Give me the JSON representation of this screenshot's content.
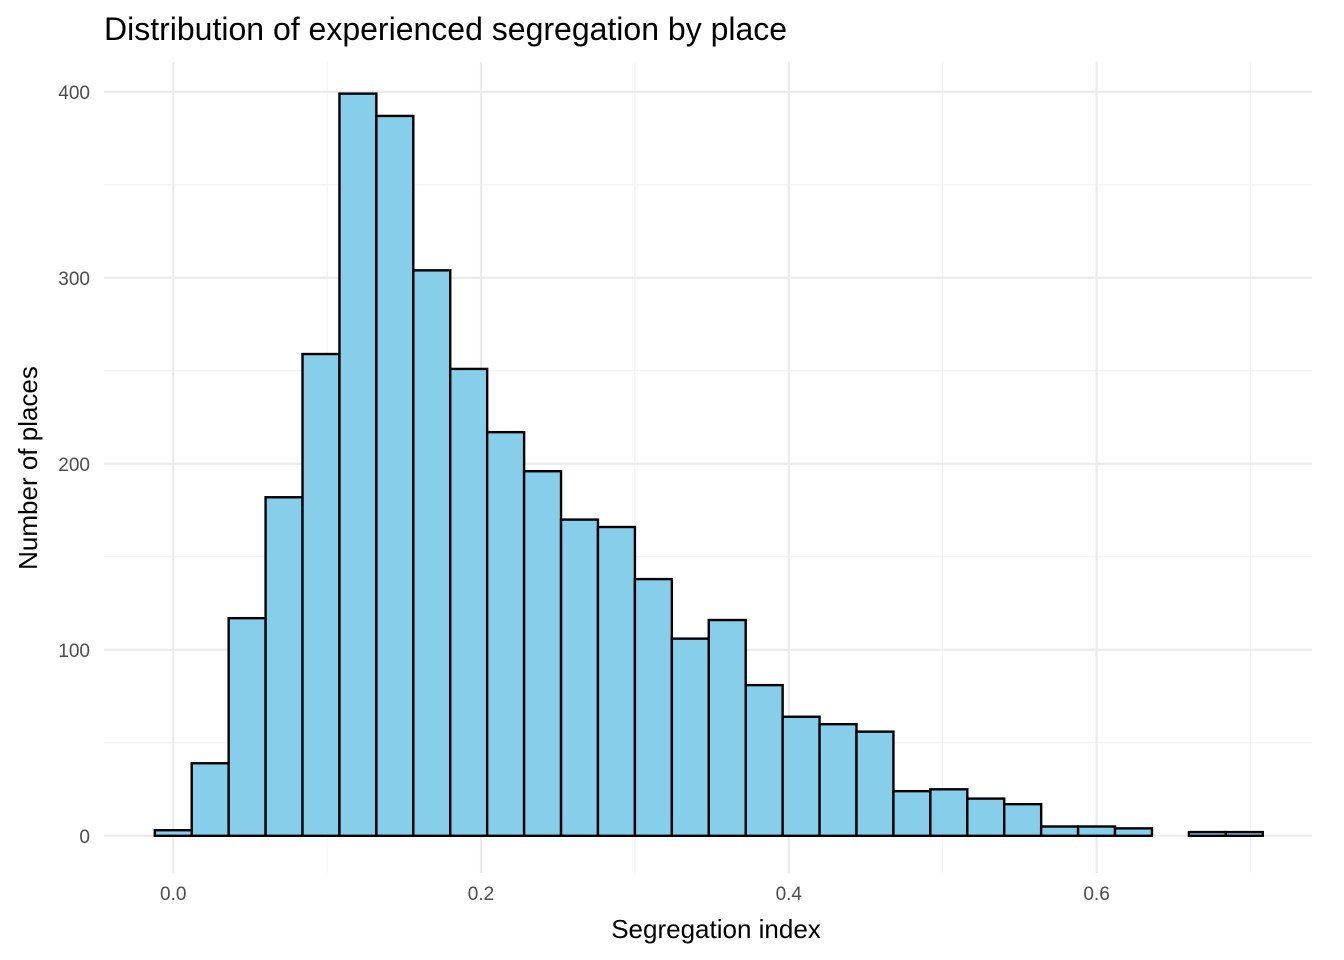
{
  "chart_data": {
    "type": "bar",
    "title": "Distribution of experienced segregation by place",
    "xlabel": "Segregation index",
    "ylabel": "Number of places",
    "bar_color": "#87ceeb",
    "bar_outline": "#000000",
    "xlim": [
      -0.045,
      0.74
    ],
    "ylim": [
      -20,
      416
    ],
    "x_ticks": [
      {
        "value": 0.0,
        "label": "0.0"
      },
      {
        "value": 0.2,
        "label": "0.2"
      },
      {
        "value": 0.4,
        "label": "0.4"
      },
      {
        "value": 0.6,
        "label": "0.6"
      }
    ],
    "y_ticks": [
      {
        "value": 0,
        "label": "0"
      },
      {
        "value": 100,
        "label": "100"
      },
      {
        "value": 200,
        "label": "200"
      },
      {
        "value": 300,
        "label": "300"
      },
      {
        "value": 400,
        "label": "400"
      }
    ],
    "bin_width": 0.024,
    "bins": [
      {
        "x0": -0.012,
        "x1": 0.012,
        "count": 3
      },
      {
        "x0": 0.012,
        "x1": 0.036,
        "count": 39
      },
      {
        "x0": 0.036,
        "x1": 0.06,
        "count": 117
      },
      {
        "x0": 0.06,
        "x1": 0.084,
        "count": 182
      },
      {
        "x0": 0.084,
        "x1": 0.108,
        "count": 259
      },
      {
        "x0": 0.108,
        "x1": 0.132,
        "count": 399
      },
      {
        "x0": 0.132,
        "x1": 0.156,
        "count": 387
      },
      {
        "x0": 0.156,
        "x1": 0.18,
        "count": 304
      },
      {
        "x0": 0.18,
        "x1": 0.204,
        "count": 251
      },
      {
        "x0": 0.204,
        "x1": 0.228,
        "count": 217
      },
      {
        "x0": 0.228,
        "x1": 0.252,
        "count": 196
      },
      {
        "x0": 0.252,
        "x1": 0.276,
        "count": 170
      },
      {
        "x0": 0.276,
        "x1": 0.3,
        "count": 166
      },
      {
        "x0": 0.3,
        "x1": 0.324,
        "count": 138
      },
      {
        "x0": 0.324,
        "x1": 0.348,
        "count": 106
      },
      {
        "x0": 0.348,
        "x1": 0.372,
        "count": 116
      },
      {
        "x0": 0.372,
        "x1": 0.396,
        "count": 81
      },
      {
        "x0": 0.396,
        "x1": 0.42,
        "count": 64
      },
      {
        "x0": 0.42,
        "x1": 0.444,
        "count": 60
      },
      {
        "x0": 0.444,
        "x1": 0.468,
        "count": 56
      },
      {
        "x0": 0.468,
        "x1": 0.492,
        "count": 24
      },
      {
        "x0": 0.492,
        "x1": 0.516,
        "count": 25
      },
      {
        "x0": 0.516,
        "x1": 0.54,
        "count": 20
      },
      {
        "x0": 0.54,
        "x1": 0.564,
        "count": 17
      },
      {
        "x0": 0.564,
        "x1": 0.588,
        "count": 5
      },
      {
        "x0": 0.588,
        "x1": 0.612,
        "count": 5
      },
      {
        "x0": 0.612,
        "x1": 0.636,
        "count": 4
      },
      {
        "x0": 0.636,
        "x1": 0.66,
        "count": 0
      },
      {
        "x0": 0.66,
        "x1": 0.684,
        "count": 2
      },
      {
        "x0": 0.684,
        "x1": 0.708,
        "count": 2
      }
    ],
    "grid": true,
    "legend": "none"
  }
}
